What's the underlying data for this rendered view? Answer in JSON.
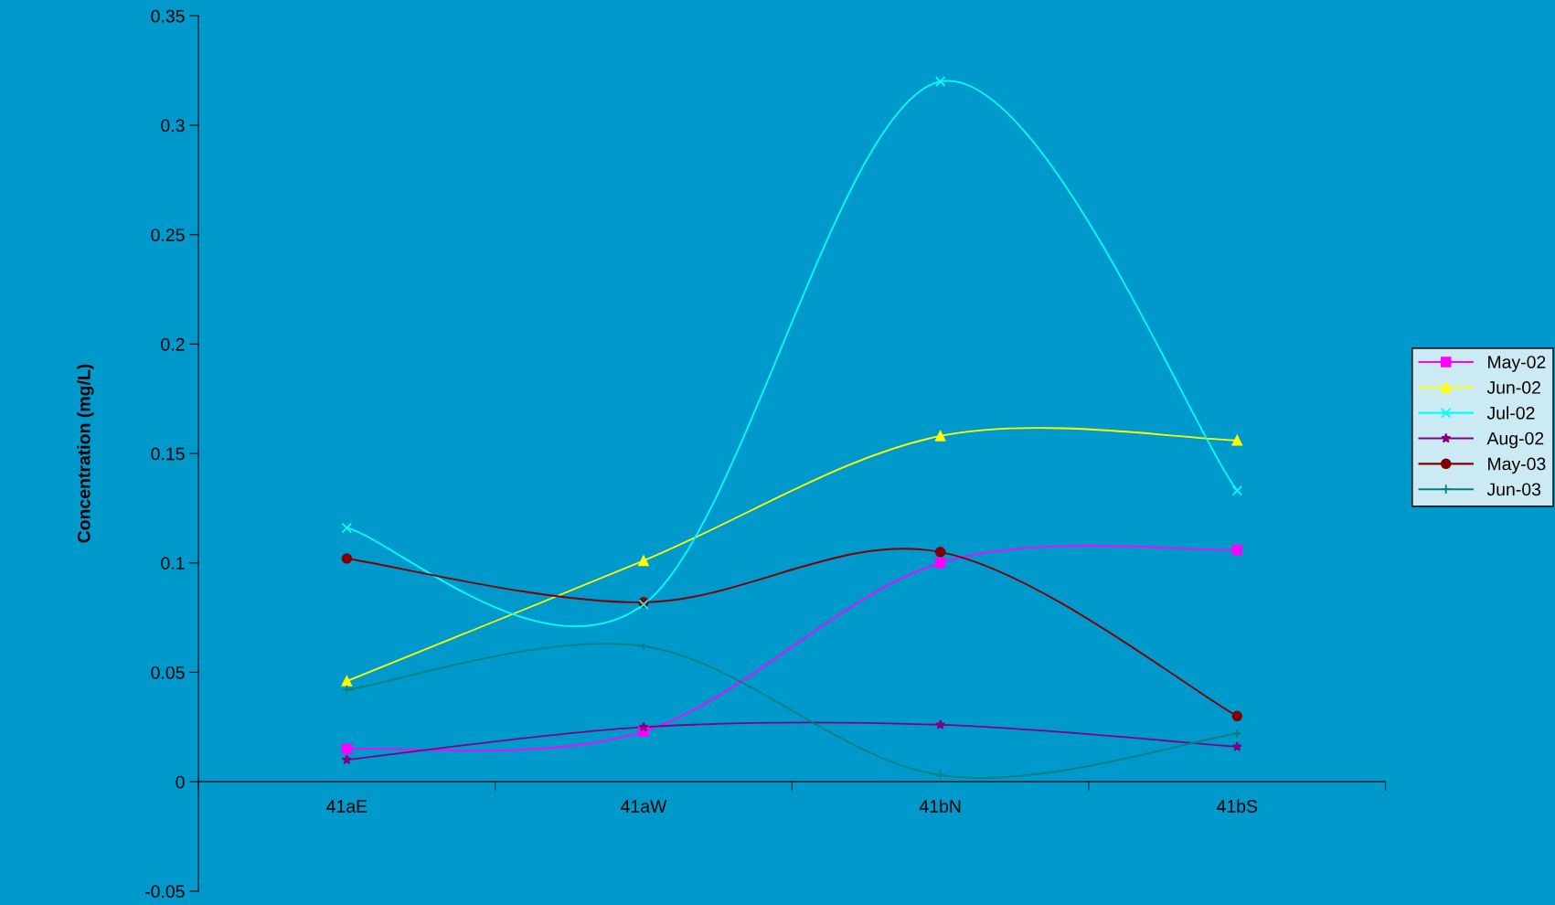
{
  "chart_data": {
    "type": "line",
    "ylabel": "Concentration (mg/L)",
    "categories": [
      "41aE",
      "41aW",
      "41bN",
      "41bS"
    ],
    "series": [
      {
        "name": "May-02",
        "color": "#ff00ff",
        "marker": "square",
        "values": [
          0.015,
          0.023,
          0.1,
          0.106
        ]
      },
      {
        "name": "Jun-02",
        "color": "#ffff00",
        "marker": "triangle",
        "values": [
          0.046,
          0.101,
          0.158,
          0.156
        ]
      },
      {
        "name": "Jul-02",
        "color": "#00ffff",
        "marker": "cross",
        "values": [
          0.116,
          0.081,
          0.32,
          0.133
        ]
      },
      {
        "name": "Aug-02",
        "color": "#800080",
        "marker": "star",
        "values": [
          0.01,
          0.025,
          0.026,
          0.016
        ]
      },
      {
        "name": "May-03",
        "color": "#800000",
        "marker": "circle",
        "values": [
          0.102,
          0.082,
          0.105,
          0.03
        ]
      },
      {
        "name": "Jun-03",
        "color": "#008080",
        "marker": "plus",
        "values": [
          0.042,
          0.062,
          0.003,
          0.022
        ]
      }
    ],
    "ylim": [
      -0.05,
      0.35
    ],
    "yticks": [
      -0.05,
      0,
      0.05,
      0.1,
      0.15,
      0.2,
      0.25,
      0.3,
      0.35
    ],
    "grid": false,
    "legend": "right",
    "line_style": "solid"
  }
}
